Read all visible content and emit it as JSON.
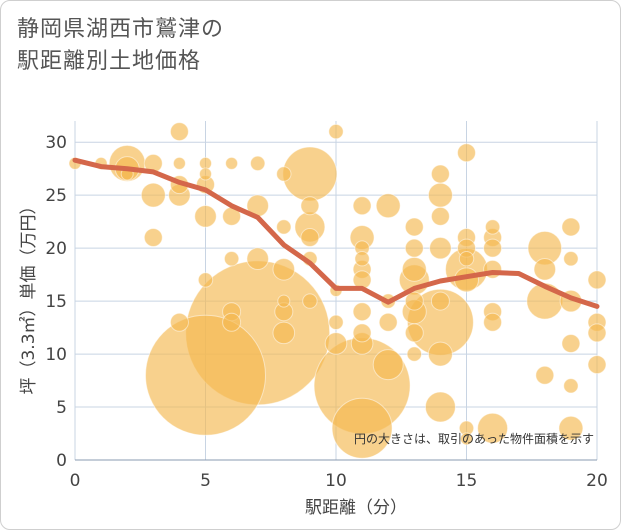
{
  "title_line1": "静岡県湖西市鷲津の",
  "title_line2": "駅距離別土地価格",
  "chart_data": {
    "type": "scatter",
    "title": "静岡県湖西市鷲津の駅距離別土地価格",
    "xlabel": "駅距離（分）",
    "ylabel": "坪（3.3㎡）単価（万円）",
    "xlim": [
      0,
      20
    ],
    "ylim": [
      0,
      32
    ],
    "xticks": [
      0,
      5,
      10,
      15,
      20
    ],
    "yticks": [
      0,
      5,
      10,
      15,
      20,
      25,
      30
    ],
    "note": "円の大きさは、取引のあった物件面積を示す",
    "bubble_color": "#f5b950",
    "line_color": "#d4674a",
    "bubbles": [
      {
        "x": 0,
        "y": 28,
        "s": 1
      },
      {
        "x": 1,
        "y": 28,
        "s": 1
      },
      {
        "x": 2,
        "y": 28,
        "s": 3
      },
      {
        "x": 2,
        "y": 27.5,
        "s": 2
      },
      {
        "x": 2,
        "y": 27,
        "s": 1
      },
      {
        "x": 3,
        "y": 28,
        "s": 1.5
      },
      {
        "x": 3,
        "y": 25,
        "s": 2
      },
      {
        "x": 3,
        "y": 21,
        "s": 1.5
      },
      {
        "x": 4,
        "y": 31,
        "s": 1.5
      },
      {
        "x": 4,
        "y": 28,
        "s": 1
      },
      {
        "x": 4,
        "y": 26,
        "s": 1.5
      },
      {
        "x": 4,
        "y": 25,
        "s": 1.8
      },
      {
        "x": 4,
        "y": 13,
        "s": 1.5
      },
      {
        "x": 5,
        "y": 28,
        "s": 1
      },
      {
        "x": 5,
        "y": 27,
        "s": 1
      },
      {
        "x": 5,
        "y": 26,
        "s": 1.5
      },
      {
        "x": 5,
        "y": 23,
        "s": 1.8
      },
      {
        "x": 5,
        "y": 17,
        "s": 1.2
      },
      {
        "x": 5,
        "y": 8,
        "s": 10
      },
      {
        "x": 6,
        "y": 28,
        "s": 1
      },
      {
        "x": 6,
        "y": 23,
        "s": 1.5
      },
      {
        "x": 6,
        "y": 19,
        "s": 1.2
      },
      {
        "x": 6,
        "y": 14,
        "s": 1.5
      },
      {
        "x": 6,
        "y": 13,
        "s": 1.5
      },
      {
        "x": 7,
        "y": 28,
        "s": 1.2
      },
      {
        "x": 7,
        "y": 24,
        "s": 1.8
      },
      {
        "x": 7,
        "y": 19,
        "s": 1.8
      },
      {
        "x": 7,
        "y": 12,
        "s": 12
      },
      {
        "x": 8,
        "y": 27,
        "s": 1.2
      },
      {
        "x": 8,
        "y": 22,
        "s": 1.2
      },
      {
        "x": 8,
        "y": 18,
        "s": 1.8
      },
      {
        "x": 8,
        "y": 15,
        "s": 1
      },
      {
        "x": 8,
        "y": 14,
        "s": 1.5
      },
      {
        "x": 8,
        "y": 12,
        "s": 1.8
      },
      {
        "x": 9,
        "y": 27,
        "s": 4.5
      },
      {
        "x": 9,
        "y": 24,
        "s": 1.5
      },
      {
        "x": 9,
        "y": 22,
        "s": 2.5
      },
      {
        "x": 9,
        "y": 21,
        "s": 1.5
      },
      {
        "x": 9,
        "y": 19,
        "s": 1.2
      },
      {
        "x": 9,
        "y": 15,
        "s": 1.2
      },
      {
        "x": 10,
        "y": 31,
        "s": 1.2
      },
      {
        "x": 10,
        "y": 16,
        "s": 1
      },
      {
        "x": 10,
        "y": 13,
        "s": 1.2
      },
      {
        "x": 10,
        "y": 11,
        "s": 1.8
      },
      {
        "x": 11,
        "y": 24,
        "s": 1.5
      },
      {
        "x": 11,
        "y": 21,
        "s": 2
      },
      {
        "x": 11,
        "y": 20,
        "s": 1.2
      },
      {
        "x": 11,
        "y": 19,
        "s": 1.2
      },
      {
        "x": 11,
        "y": 18,
        "s": 1.5
      },
      {
        "x": 11,
        "y": 17,
        "s": 1.5
      },
      {
        "x": 11,
        "y": 14,
        "s": 1.5
      },
      {
        "x": 11,
        "y": 12,
        "s": 1.5
      },
      {
        "x": 11,
        "y": 11,
        "s": 1.8
      },
      {
        "x": 11,
        "y": 7,
        "s": 8
      },
      {
        "x": 11,
        "y": 3,
        "s": 5
      },
      {
        "x": 12,
        "y": 24,
        "s": 2
      },
      {
        "x": 12,
        "y": 15,
        "s": 1.2
      },
      {
        "x": 12,
        "y": 13,
        "s": 1.5
      },
      {
        "x": 12,
        "y": 9,
        "s": 2.5
      },
      {
        "x": 13,
        "y": 22,
        "s": 1.5
      },
      {
        "x": 13,
        "y": 20,
        "s": 1.5
      },
      {
        "x": 13,
        "y": 18,
        "s": 2
      },
      {
        "x": 13,
        "y": 17,
        "s": 2.5
      },
      {
        "x": 13,
        "y": 15,
        "s": 1.5
      },
      {
        "x": 13,
        "y": 14,
        "s": 2
      },
      {
        "x": 13,
        "y": 12,
        "s": 1.5
      },
      {
        "x": 13,
        "y": 10,
        "s": 1.2
      },
      {
        "x": 14,
        "y": 27,
        "s": 1.5
      },
      {
        "x": 14,
        "y": 25,
        "s": 2
      },
      {
        "x": 14,
        "y": 23,
        "s": 1.5
      },
      {
        "x": 14,
        "y": 20,
        "s": 1.8
      },
      {
        "x": 14,
        "y": 15,
        "s": 1.5
      },
      {
        "x": 14,
        "y": 13,
        "s": 5.5
      },
      {
        "x": 14,
        "y": 10,
        "s": 2
      },
      {
        "x": 14,
        "y": 5,
        "s": 2.5
      },
      {
        "x": 15,
        "y": 29,
        "s": 1.5
      },
      {
        "x": 15,
        "y": 21,
        "s": 1.5
      },
      {
        "x": 15,
        "y": 20,
        "s": 1.5
      },
      {
        "x": 15,
        "y": 19,
        "s": 1.2
      },
      {
        "x": 15,
        "y": 18,
        "s": 3.5
      },
      {
        "x": 15,
        "y": 17,
        "s": 2
      },
      {
        "x": 15,
        "y": 3,
        "s": 1.2
      },
      {
        "x": 15,
        "y": 2,
        "s": 1
      },
      {
        "x": 16,
        "y": 22,
        "s": 1.2
      },
      {
        "x": 16,
        "y": 21,
        "s": 1.5
      },
      {
        "x": 16,
        "y": 20,
        "s": 1.5
      },
      {
        "x": 16,
        "y": 18,
        "s": 1.5
      },
      {
        "x": 16,
        "y": 14,
        "s": 1.5
      },
      {
        "x": 16,
        "y": 13,
        "s": 1.5
      },
      {
        "x": 16,
        "y": 3,
        "s": 2.5
      },
      {
        "x": 18,
        "y": 20,
        "s": 2.8
      },
      {
        "x": 18,
        "y": 18,
        "s": 1.8
      },
      {
        "x": 18,
        "y": 15,
        "s": 3
      },
      {
        "x": 18,
        "y": 8,
        "s": 1.5
      },
      {
        "x": 19,
        "y": 22,
        "s": 1.5
      },
      {
        "x": 19,
        "y": 19,
        "s": 1.2
      },
      {
        "x": 19,
        "y": 15,
        "s": 1.8
      },
      {
        "x": 19,
        "y": 11,
        "s": 1.5
      },
      {
        "x": 19,
        "y": 7,
        "s": 1.2
      },
      {
        "x": 19,
        "y": 3,
        "s": 2
      },
      {
        "x": 20,
        "y": 17,
        "s": 1.5
      },
      {
        "x": 20,
        "y": 13,
        "s": 1.5
      },
      {
        "x": 20,
        "y": 12,
        "s": 1.5
      },
      {
        "x": 20,
        "y": 9,
        "s": 1.5
      }
    ],
    "trend": [
      {
        "x": 0,
        "y": 28.3
      },
      {
        "x": 1,
        "y": 27.7
      },
      {
        "x": 2,
        "y": 27.5
      },
      {
        "x": 3,
        "y": 27.2
      },
      {
        "x": 4,
        "y": 26.2
      },
      {
        "x": 5,
        "y": 25.5
      },
      {
        "x": 6,
        "y": 24
      },
      {
        "x": 7,
        "y": 22.9
      },
      {
        "x": 8,
        "y": 20.3
      },
      {
        "x": 9,
        "y": 18.6
      },
      {
        "x": 10,
        "y": 16.2
      },
      {
        "x": 11,
        "y": 16.2
      },
      {
        "x": 12,
        "y": 14.9
      },
      {
        "x": 13,
        "y": 16.2
      },
      {
        "x": 14,
        "y": 16.9
      },
      {
        "x": 15,
        "y": 17.3
      },
      {
        "x": 16,
        "y": 17.7
      },
      {
        "x": 17,
        "y": 17.6
      },
      {
        "x": 18,
        "y": 16.4
      },
      {
        "x": 19,
        "y": 15.3
      },
      {
        "x": 20,
        "y": 14.5
      }
    ]
  }
}
